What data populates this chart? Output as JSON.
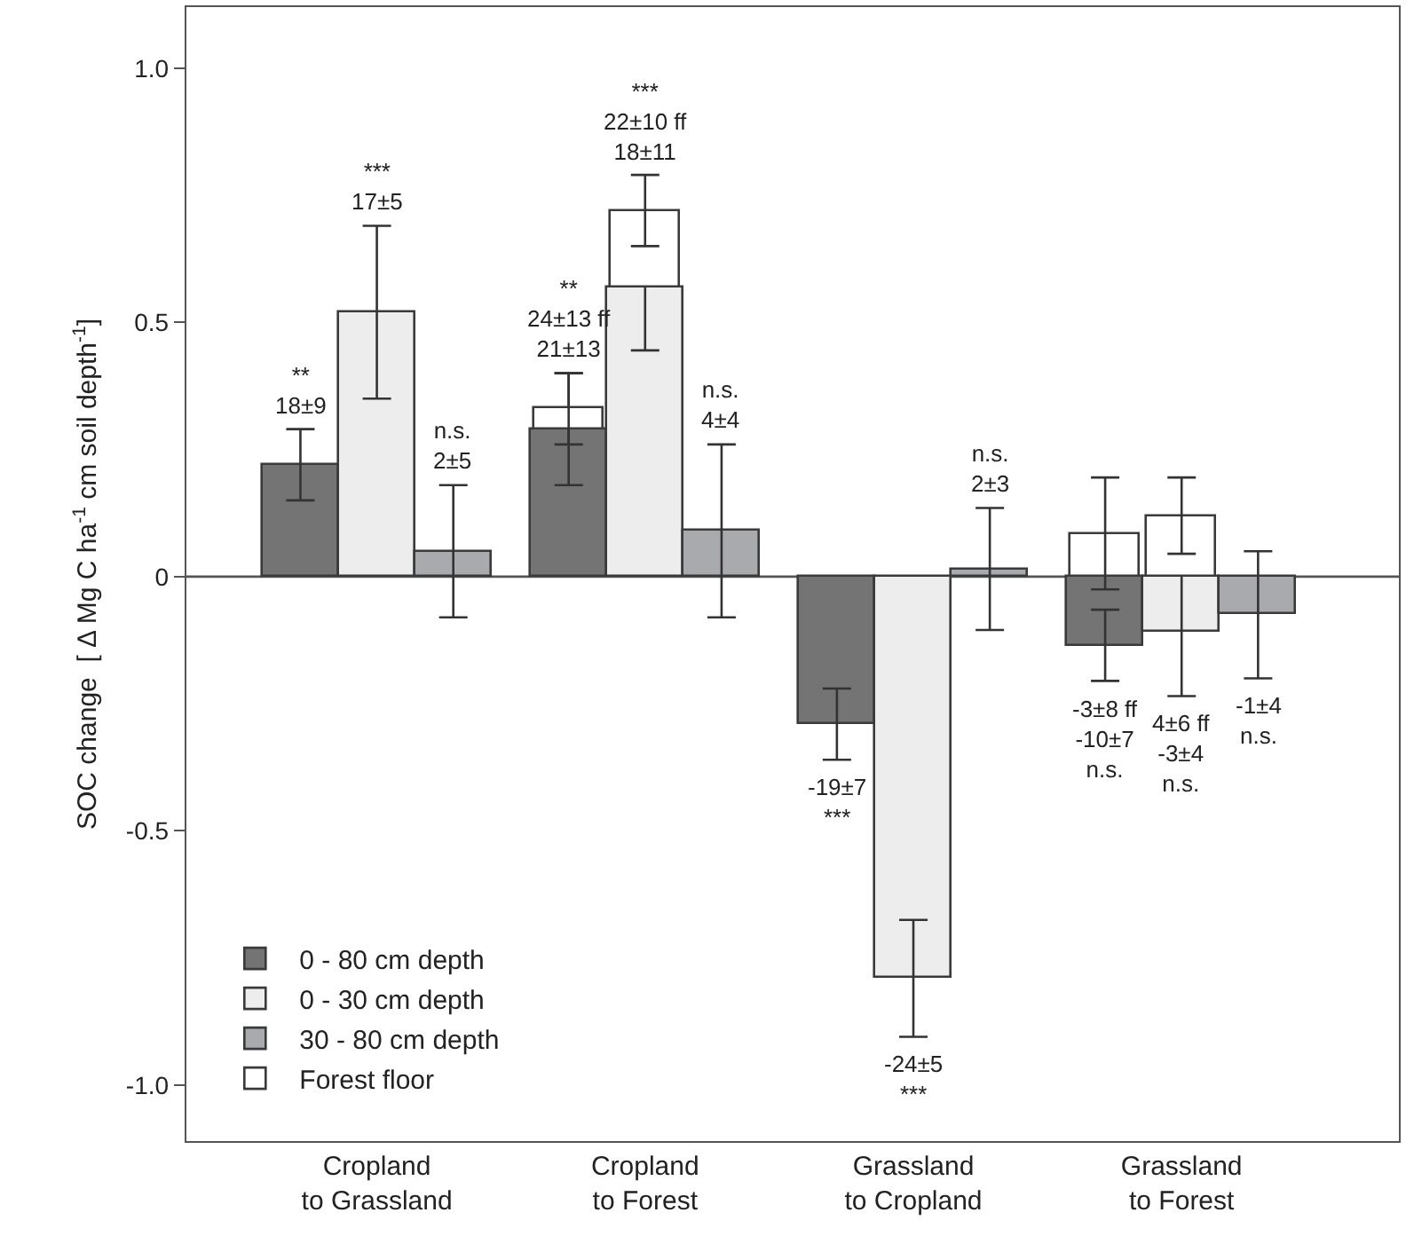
{
  "chart_data": {
    "type": "bar",
    "ylabel": "SOC change  [ Δ Mg C ha$^{-1}$ cm soil depth$^{-1}$]",
    "categories": [
      "Cropland\nto Grassland",
      "Cropland\nto Forest",
      "Grassland\nto Cropland",
      "Grassland\nto Forest"
    ],
    "ylim": [
      -1.11,
      1.12
    ],
    "yticks": [
      {
        "value": -1,
        "label": "-1.0"
      },
      {
        "value": -0.5,
        "label": "-0.5"
      },
      0,
      {
        "value": 0.5,
        "label": "0.5"
      },
      {
        "value": 1,
        "label": "1.0"
      }
    ],
    "grid": false,
    "legend": "bottom left",
    "ref_lines": [
      {
        "axis": "y",
        "value": 0
      }
    ],
    "series": [
      {
        "name": "0 - 80 cm depth",
        "color": "#747474",
        "values": [
          0.22,
          0.29,
          -0.29,
          -0.135
        ],
        "errors": [
          0.07,
          0.11,
          0.07,
          0.07
        ]
      },
      {
        "name": "0 - 30 cm depth",
        "color": "#ededed",
        "values": [
          0.52,
          0.57,
          -0.79,
          -0.11
        ],
        "errors": [
          0.17,
          0.125,
          0.115,
          0.125
        ]
      },
      {
        "name": "30 - 80 cm depth",
        "color": "#a9aaae",
        "values": [
          0.05,
          0.09,
          0.015,
          -0.075
        ],
        "errors": [
          0.13,
          0.17,
          0.12,
          0.125
        ]
      },
      {
        "name": "Forest floor",
        "color": "#ffffff",
        "values": [
          null,
          0.04,
          null,
          0.085
        ],
        "base": [
          null,
          0.29,
          null,
          0
        ],
        "errors": [
          null,
          0.07,
          null,
          0.11
        ]
      },
      {
        "color": "#ffffff",
        "values": [
          null,
          0.15,
          null,
          0.12
        ],
        "base": [
          null,
          0.57,
          null,
          0
        ],
        "errors": [
          null,
          0.07,
          null,
          0.075
        ]
      }
    ],
    "annotations": [
      "**\n18±9",
      "***\n17±5",
      "n.s.\n2±5",
      "**\n24±13 ff\n21±13",
      "***\n22±10 ff\n18±11",
      "n.s.\n4±4",
      "-19±7\n***",
      "-24±5\n***",
      "n.s.\n2±3",
      "-3±8 ff\n-10±7\nn.s.",
      "4±6 ff\n-3±4\nn.s.",
      "-1±4\nn.s."
    ]
  }
}
